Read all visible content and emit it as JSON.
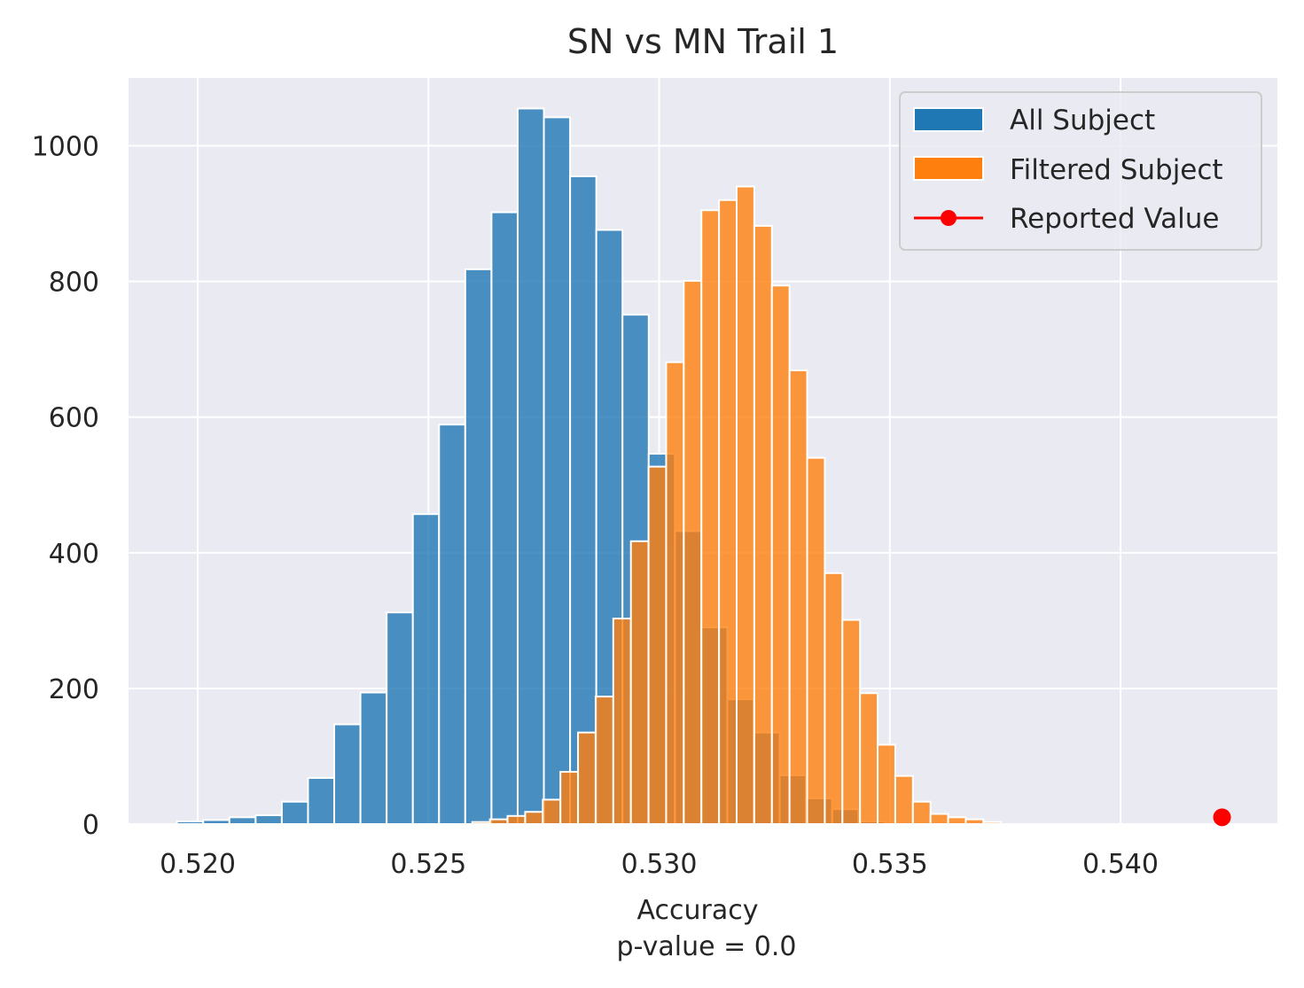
{
  "chart_data": {
    "type": "bar",
    "title": "SN vs MN Trail 1",
    "xlabel": "Accuracy",
    "xlabel_sub": "p-value = 0.0",
    "ylabel": "",
    "xlim": [
      0.5185,
      0.5434
    ],
    "ylim": [
      0,
      1100
    ],
    "xticks": [
      0.52,
      0.525,
      0.53,
      0.535,
      0.54
    ],
    "xtick_labels": [
      "0.520",
      "0.525",
      "0.530",
      "0.535",
      "0.540"
    ],
    "yticks": [
      0,
      200,
      400,
      600,
      800,
      1000
    ],
    "ytick_labels": [
      "0",
      "200",
      "400",
      "600",
      "800",
      "1000"
    ],
    "grid": true,
    "legend_position": "top-right",
    "series": [
      {
        "name": "All Subject",
        "kind": "histogram",
        "color": "#1f77b4",
        "bin_start": 0.51955,
        "bin_width": 0.000568,
        "counts": [
          4,
          6,
          10,
          13,
          33,
          68,
          147,
          194,
          312,
          457,
          589,
          818,
          902,
          1055,
          1042,
          955,
          876,
          751,
          546,
          432,
          290,
          184,
          135,
          72,
          38,
          22,
          4
        ]
      },
      {
        "name": "Filtered Subject",
        "kind": "histogram",
        "color": "#ff7f0e",
        "bin_start": 0.52595,
        "bin_width": 0.000382,
        "counts": [
          3,
          7,
          12,
          18,
          36,
          77,
          135,
          188,
          303,
          417,
          527,
          681,
          801,
          905,
          920,
          940,
          882,
          794,
          669,
          540,
          370,
          301,
          193,
          117,
          71,
          33,
          15,
          10,
          7,
          3
        ]
      },
      {
        "name": "Reported Value",
        "kind": "point",
        "color": "#ff0000",
        "x": 0.5422,
        "y": 10
      }
    ]
  }
}
